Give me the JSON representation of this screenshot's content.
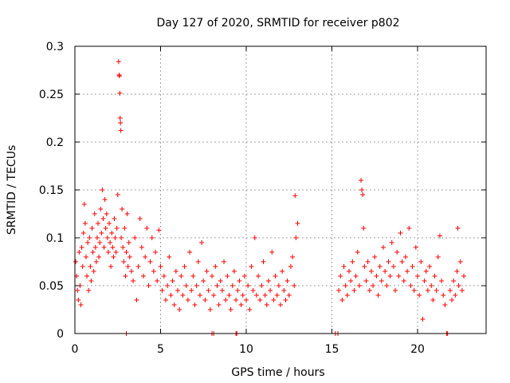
{
  "chart_data": {
    "type": "scatter",
    "title": "Day 127 of 2020, SRMTID for receiver p802",
    "xlabel": "GPS time / hours",
    "ylabel": "SRMTID / TECUs",
    "xlim": [
      0,
      24
    ],
    "ylim": [
      0,
      0.3
    ],
    "xticks": [
      0,
      5,
      10,
      15,
      20
    ],
    "xtick_labels": [
      "0",
      "5",
      "10",
      "15",
      "20"
    ],
    "yticks": [
      0,
      0.05,
      0.1,
      0.15,
      0.2,
      0.25,
      0.3
    ],
    "ytick_labels": [
      "0",
      "0.05",
      "0.1",
      "0.15",
      "0.2",
      "0.25",
      "0.3"
    ],
    "grid": true,
    "marker": "+",
    "series": [
      {
        "name": "SRMTID",
        "color": "#ff0000",
        "points": [
          [
            0.05,
            0.075
          ],
          [
            0.1,
            0.06
          ],
          [
            0.15,
            0.045
          ],
          [
            0.2,
            0.035
          ],
          [
            0.25,
            0.085
          ],
          [
            0.3,
            0.05
          ],
          [
            0.35,
            0.03
          ],
          [
            0.4,
            0.09
          ],
          [
            0.45,
            0.07
          ],
          [
            0.5,
            0.105
          ],
          [
            0.55,
            0.135
          ],
          [
            0.6,
            0.115
          ],
          [
            0.65,
            0.08
          ],
          [
            0.7,
            0.06
          ],
          [
            0.75,
            0.095
          ],
          [
            0.8,
            0.045
          ],
          [
            0.85,
            0.1
          ],
          [
            0.9,
            0.07
          ],
          [
            0.95,
            0.055
          ],
          [
            1.0,
            0.11
          ],
          [
            1.05,
            0.085
          ],
          [
            1.1,
            0.065
          ],
          [
            1.15,
            0.125
          ],
          [
            1.2,
            0.09
          ],
          [
            1.25,
            0.075
          ],
          [
            1.3,
            0.1
          ],
          [
            1.35,
            0.115
          ],
          [
            1.4,
            0.08
          ],
          [
            1.45,
            0.095
          ],
          [
            1.5,
            0.13
          ],
          [
            1.55,
            0.105
          ],
          [
            1.6,
            0.15
          ],
          [
            1.65,
            0.12
          ],
          [
            1.7,
            0.09
          ],
          [
            1.75,
            0.14
          ],
          [
            1.8,
            0.11
          ],
          [
            1.85,
            0.125
          ],
          [
            1.9,
            0.1
          ],
          [
            1.95,
            0.085
          ],
          [
            2.0,
            0.115
          ],
          [
            2.05,
            0.095
          ],
          [
            2.1,
            0.07
          ],
          [
            2.15,
            0.105
          ],
          [
            2.2,
            0.09
          ],
          [
            2.25,
            0.08
          ],
          [
            2.3,
            0.12
          ],
          [
            2.35,
            0.1
          ],
          [
            2.4,
            0.085
          ],
          [
            2.45,
            0.11
          ],
          [
            2.5,
            0.145
          ],
          [
            2.55,
            0.284
          ],
          [
            2.58,
            0.27
          ],
          [
            2.6,
            0.269
          ],
          [
            2.62,
            0.251
          ],
          [
            2.64,
            0.225
          ],
          [
            2.66,
            0.22
          ],
          [
            2.68,
            0.212
          ],
          [
            2.7,
            0.1
          ],
          [
            2.75,
            0.13
          ],
          [
            2.8,
            0.09
          ],
          [
            2.85,
            0.075
          ],
          [
            2.9,
            0.11
          ],
          [
            2.95,
            0.06
          ],
          [
            3.0,
            0.085
          ],
          [
            3.05,
            0.125
          ],
          [
            3.1,
            0.07
          ],
          [
            3.15,
            0.095
          ],
          [
            3.2,
            0.08
          ],
          [
            3.3,
            0.065
          ],
          [
            3.4,
            0.055
          ],
          [
            3.5,
            0.1
          ],
          [
            3.6,
            0.035
          ],
          [
            3.7,
            0.07
          ],
          [
            3.8,
            0.12
          ],
          [
            3.9,
            0.09
          ],
          [
            4.0,
            0.06
          ],
          [
            4.1,
            0.08
          ],
          [
            4.2,
            0.11
          ],
          [
            4.3,
            0.05
          ],
          [
            4.4,
            0.075
          ],
          [
            4.5,
            0.1
          ],
          [
            4.6,
            0.065
          ],
          [
            4.7,
            0.085
          ],
          [
            4.8,
            0.055
          ],
          [
            4.9,
            0.108
          ],
          [
            5.0,
            0.07
          ],
          [
            5.1,
            0.045
          ],
          [
            5.2,
            0.06
          ],
          [
            5.3,
            0.035
          ],
          [
            5.4,
            0.05
          ],
          [
            5.5,
            0.08
          ],
          [
            5.6,
            0.04
          ],
          [
            5.7,
            0.055
          ],
          [
            5.8,
            0.03
          ],
          [
            5.9,
            0.065
          ],
          [
            6.0,
            0.045
          ],
          [
            6.1,
            0.025
          ],
          [
            6.2,
            0.06
          ],
          [
            6.3,
            0.04
          ],
          [
            6.4,
            0.07
          ],
          [
            6.5,
            0.05
          ],
          [
            6.6,
            0.035
          ],
          [
            6.7,
            0.085
          ],
          [
            6.8,
            0.045
          ],
          [
            6.9,
            0.06
          ],
          [
            7.0,
            0.03
          ],
          [
            7.1,
            0.05
          ],
          [
            7.2,
            0.075
          ],
          [
            7.3,
            0.04
          ],
          [
            7.4,
            0.095
          ],
          [
            7.5,
            0.055
          ],
          [
            7.6,
            0.035
          ],
          [
            7.7,
            0.065
          ],
          [
            7.8,
            0.045
          ],
          [
            7.9,
            0.025
          ],
          [
            8.0,
            0.06
          ],
          [
            8.1,
            0.04
          ],
          [
            8.2,
            0.07
          ],
          [
            8.3,
            0.05
          ],
          [
            8.4,
            0.03
          ],
          [
            8.5,
            0.055
          ],
          [
            8.6,
            0.045
          ],
          [
            8.7,
            0.075
          ],
          [
            8.8,
            0.035
          ],
          [
            8.9,
            0.06
          ],
          [
            9.0,
            0.04
          ],
          [
            9.1,
            0.025
          ],
          [
            9.2,
            0.05
          ],
          [
            9.3,
            0.065
          ],
          [
            9.4,
            0.035
          ],
          [
            9.5,
            0.045
          ],
          [
            9.6,
            0.055
          ],
          [
            9.7,
            0.03
          ],
          [
            9.8,
            0.04
          ],
          [
            9.9,
            0.06
          ],
          [
            10.0,
            0.035
          ],
          [
            10.1,
            0.05
          ],
          [
            10.2,
            0.025
          ],
          [
            10.3,
            0.07
          ],
          [
            10.4,
            0.045
          ],
          [
            10.5,
            0.1
          ],
          [
            10.6,
            0.04
          ],
          [
            10.7,
            0.06
          ],
          [
            10.8,
            0.035
          ],
          [
            10.9,
            0.05
          ],
          [
            11.0,
            0.075
          ],
          [
            11.1,
            0.04
          ],
          [
            11.2,
            0.03
          ],
          [
            11.3,
            0.055
          ],
          [
            11.4,
            0.045
          ],
          [
            11.5,
            0.085
          ],
          [
            11.6,
            0.035
          ],
          [
            11.7,
            0.06
          ],
          [
            11.8,
            0.04
          ],
          [
            11.9,
            0.05
          ],
          [
            12.0,
            0.03
          ],
          [
            12.1,
            0.065
          ],
          [
            12.2,
            0.045
          ],
          [
            12.3,
            0.035
          ],
          [
            12.4,
            0.055
          ],
          [
            12.5,
            0.04
          ],
          [
            12.6,
            0.07
          ],
          [
            12.7,
            0.08
          ],
          [
            12.8,
            0.05
          ],
          [
            12.85,
            0.144
          ],
          [
            12.9,
            0.1
          ],
          [
            13.0,
            0.115
          ],
          [
            15.4,
            0.045
          ],
          [
            15.5,
            0.06
          ],
          [
            15.6,
            0.035
          ],
          [
            15.7,
            0.07
          ],
          [
            15.8,
            0.05
          ],
          [
            15.9,
            0.04
          ],
          [
            16.0,
            0.065
          ],
          [
            16.1,
            0.055
          ],
          [
            16.2,
            0.075
          ],
          [
            16.3,
            0.045
          ],
          [
            16.4,
            0.06
          ],
          [
            16.5,
            0.085
          ],
          [
            16.6,
            0.05
          ],
          [
            16.7,
            0.16
          ],
          [
            16.75,
            0.15
          ],
          [
            16.8,
            0.145
          ],
          [
            16.85,
            0.11
          ],
          [
            16.9,
            0.07
          ],
          [
            17.0,
            0.055
          ],
          [
            17.1,
            0.075
          ],
          [
            17.2,
            0.045
          ],
          [
            17.3,
            0.065
          ],
          [
            17.4,
            0.05
          ],
          [
            17.5,
            0.08
          ],
          [
            17.6,
            0.06
          ],
          [
            17.7,
            0.04
          ],
          [
            17.8,
            0.07
          ],
          [
            17.9,
            0.055
          ],
          [
            18.0,
            0.09
          ],
          [
            18.1,
            0.065
          ],
          [
            18.2,
            0.05
          ],
          [
            18.3,
            0.075
          ],
          [
            18.4,
            0.06
          ],
          [
            18.5,
            0.095
          ],
          [
            18.6,
            0.07
          ],
          [
            18.7,
            0.045
          ],
          [
            18.8,
            0.085
          ],
          [
            18.9,
            0.06
          ],
          [
            19.0,
            0.105
          ],
          [
            19.1,
            0.075
          ],
          [
            19.2,
            0.055
          ],
          [
            19.3,
            0.08
          ],
          [
            19.4,
            0.065
          ],
          [
            19.5,
            0.11
          ],
          [
            19.6,
            0.05
          ],
          [
            19.7,
            0.07
          ],
          [
            19.8,
            0.045
          ],
          [
            19.9,
            0.09
          ],
          [
            20.0,
            0.06
          ],
          [
            20.1,
            0.04
          ],
          [
            20.2,
            0.075
          ],
          [
            20.3,
            0.015
          ],
          [
            20.4,
            0.055
          ],
          [
            20.5,
            0.065
          ],
          [
            20.6,
            0.045
          ],
          [
            20.7,
            0.07
          ],
          [
            20.8,
            0.05
          ],
          [
            20.9,
            0.035
          ],
          [
            21.0,
            0.06
          ],
          [
            21.1,
            0.045
          ],
          [
            21.2,
            0.08
          ],
          [
            21.3,
            0.102
          ],
          [
            21.4,
            0.055
          ],
          [
            21.5,
            0.04
          ],
          [
            21.6,
            0.03
          ],
          [
            21.9,
            0.045
          ],
          [
            22.0,
            0.035
          ],
          [
            22.1,
            0.055
          ],
          [
            22.2,
            0.04
          ],
          [
            22.3,
            0.065
          ],
          [
            22.35,
            0.11
          ],
          [
            22.4,
            0.05
          ],
          [
            22.5,
            0.075
          ],
          [
            22.6,
            0.045
          ],
          [
            22.7,
            0.06
          ],
          [
            3.0,
            0.0
          ],
          [
            8.0,
            0.0
          ],
          [
            8.1,
            0.0
          ],
          [
            9.4,
            0.0
          ],
          [
            9.45,
            0.0
          ],
          [
            15.2,
            0.0
          ],
          [
            15.35,
            0.0
          ],
          [
            21.7,
            0.0
          ],
          [
            21.75,
            0.0
          ]
        ]
      }
    ]
  }
}
